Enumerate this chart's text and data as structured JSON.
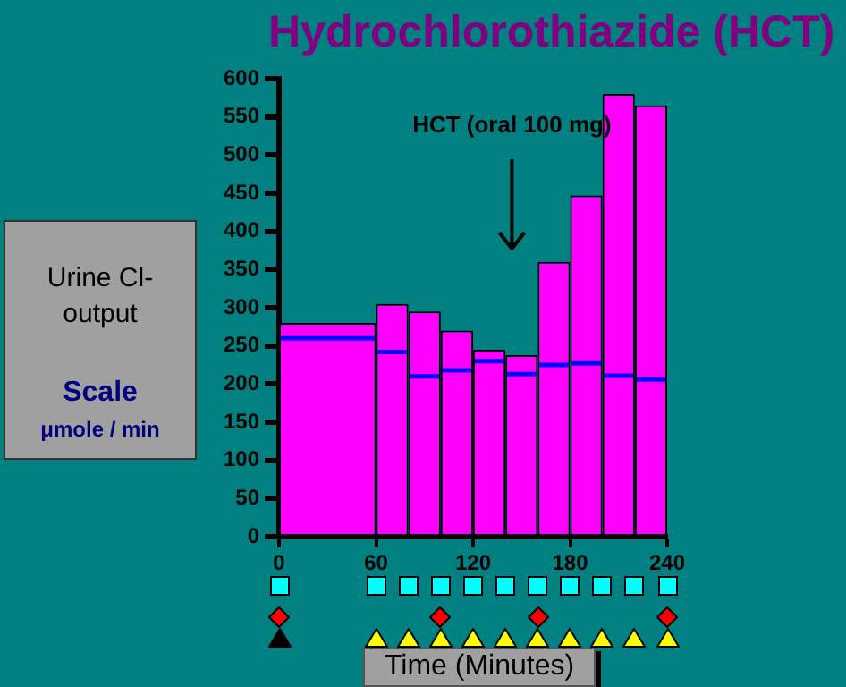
{
  "chart_data": {
    "type": "histogram",
    "title": "Hydrochlorothiazide (HCT)",
    "ylabel": "Urine Cl- output",
    "subtitle": "Scale μmole / min",
    "xlabel": "Time (Minutes)",
    "bins": [
      0,
      60,
      80,
      100,
      120,
      140,
      160,
      180,
      200,
      220,
      240
    ],
    "series": [
      {
        "color": "#ff00ff",
        "values": [
          280,
          305,
          295,
          270,
          245,
          238,
          360,
          447,
          580,
          565
        ]
      },
      {
        "type": "line",
        "color": "#0000ff",
        "x": [
          1,
          59,
          60,
          61,
          79,
          80,
          81,
          99,
          100,
          101,
          119,
          120,
          121,
          139,
          140,
          141,
          159,
          160,
          161,
          179,
          180,
          181,
          199,
          200,
          201,
          219,
          220,
          221,
          239
        ],
        "values": [
          260,
          260,
          null,
          242,
          242,
          null,
          210,
          210,
          null,
          218,
          218,
          null,
          230,
          230,
          null,
          213,
          213,
          null,
          225,
          225,
          null,
          227,
          227,
          null,
          211,
          211,
          null,
          206,
          206
        ]
      }
    ],
    "xlim": [
      0,
      240
    ],
    "xticks": [
      0,
      60,
      120,
      180,
      240
    ],
    "ylim": [
      0,
      600
    ],
    "yticks": [
      0,
      50,
      100,
      150,
      200,
      250,
      300,
      350,
      400,
      450,
      500,
      550,
      600
    ],
    "grid": false,
    "legend": false,
    "annotations": [
      "HCT (oral 100 mg)"
    ]
  }
}
